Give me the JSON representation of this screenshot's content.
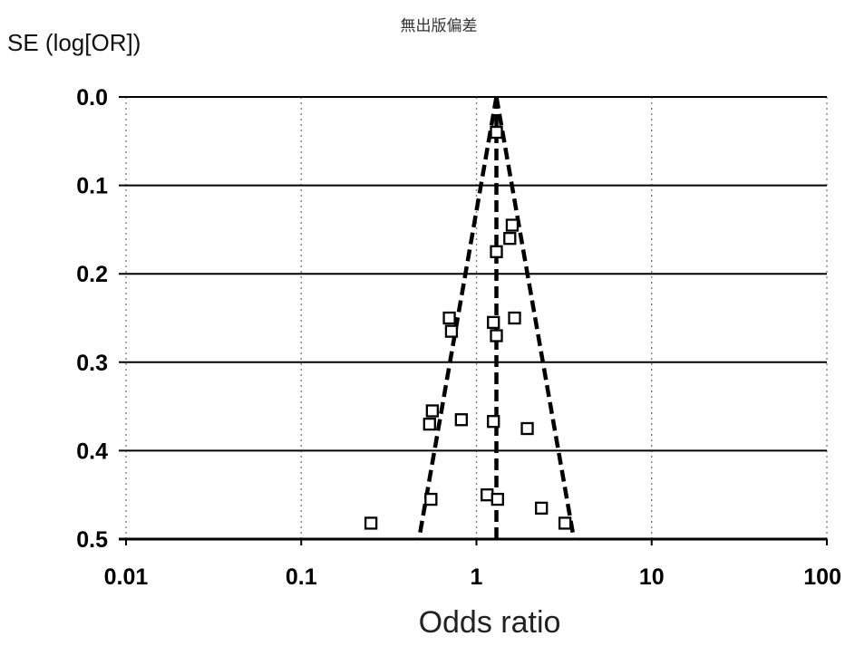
{
  "chart_data": {
    "type": "scatter",
    "title": "無出版偏差",
    "xlabel": "Odds ratio",
    "ylabel": "SE (log[OR])",
    "x_scale": "log",
    "xlim": [
      0.01,
      100
    ],
    "ylim": [
      0.0,
      0.5
    ],
    "y_inverted": true,
    "x_ticks": [
      0.01,
      0.1,
      1,
      10,
      100
    ],
    "x_tick_labels": [
      "0.01",
      "0.1",
      "1",
      "10",
      "100"
    ],
    "y_ticks": [
      0.0,
      0.1,
      0.2,
      0.3,
      0.4,
      0.5
    ],
    "y_tick_labels": [
      "0.0",
      "0.1",
      "0.2",
      "0.3",
      "0.4",
      "0.5"
    ],
    "grid": {
      "x": "dotted vertical",
      "y": "solid horizontal"
    },
    "pooled_or": 1.3,
    "funnel_lines": [
      {
        "from": {
          "x": 1.3,
          "y": 0.0
        },
        "to": {
          "x": 0.47,
          "y": 0.5
        },
        "style": "dashed"
      },
      {
        "from": {
          "x": 1.3,
          "y": 0.0
        },
        "to": {
          "x": 3.6,
          "y": 0.5
        },
        "style": "dashed"
      },
      {
        "from": {
          "x": 1.3,
          "y": 0.0
        },
        "to": {
          "x": 1.3,
          "y": 0.5
        },
        "style": "dashed"
      }
    ],
    "series": [
      {
        "marker": "open-square",
        "points": [
          {
            "x": 1.3,
            "y": 0.04
          },
          {
            "x": 1.6,
            "y": 0.145
          },
          {
            "x": 1.55,
            "y": 0.16
          },
          {
            "x": 1.3,
            "y": 0.175
          },
          {
            "x": 0.7,
            "y": 0.25
          },
          {
            "x": 0.72,
            "y": 0.265
          },
          {
            "x": 1.25,
            "y": 0.255
          },
          {
            "x": 1.3,
            "y": 0.27
          },
          {
            "x": 1.65,
            "y": 0.25
          },
          {
            "x": 0.56,
            "y": 0.355
          },
          {
            "x": 0.54,
            "y": 0.37
          },
          {
            "x": 0.82,
            "y": 0.365
          },
          {
            "x": 1.25,
            "y": 0.367
          },
          {
            "x": 1.95,
            "y": 0.375
          },
          {
            "x": 0.55,
            "y": 0.455
          },
          {
            "x": 1.15,
            "y": 0.45
          },
          {
            "x": 1.32,
            "y": 0.455
          },
          {
            "x": 2.35,
            "y": 0.465
          },
          {
            "x": 0.25,
            "y": 0.482
          },
          {
            "x": 3.2,
            "y": 0.482
          }
        ]
      }
    ]
  }
}
